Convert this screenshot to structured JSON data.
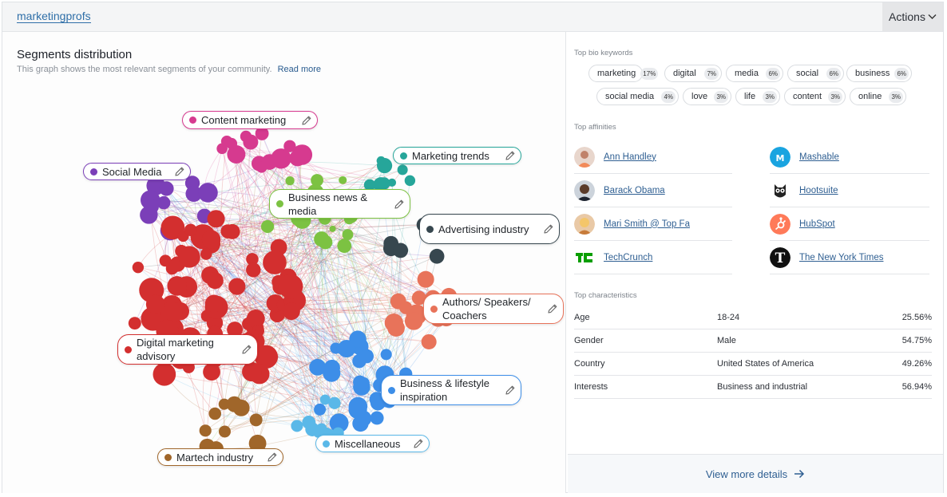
{
  "header": {
    "account": "marketingprofs",
    "actions_label": "Actions"
  },
  "graph": {
    "title": "Segments distribution",
    "subtitle": "This graph shows the most relevant segments of your community.",
    "read_more": "Read more",
    "segments": [
      {
        "name": "Content marketing",
        "color": "#d63a8f"
      },
      {
        "name": "Marketing trends",
        "color": "#26a69a"
      },
      {
        "name": "Social Media",
        "color": "#7b3fb8"
      },
      {
        "name": "Business news & media",
        "color": "#7cc242"
      },
      {
        "name": "Advertising industry",
        "color": "#37474f"
      },
      {
        "name": "Authors/ Speakers/ Coachers",
        "color": "#e8735a"
      },
      {
        "name": "Digital marketing advisory",
        "color": "#d32f2f"
      },
      {
        "name": "Business & lifestyle inspiration",
        "color": "#3d8ee8"
      },
      {
        "name": "Miscellaneous",
        "color": "#5ab8e8"
      },
      {
        "name": "Martech industry",
        "color": "#a0662a"
      }
    ]
  },
  "keywords": {
    "title": "Top bio keywords",
    "items": [
      {
        "word": "marketing",
        "pct": "17%"
      },
      {
        "word": "digital",
        "pct": "7%"
      },
      {
        "word": "media",
        "pct": "6%"
      },
      {
        "word": "social",
        "pct": "6%"
      },
      {
        "word": "business",
        "pct": "6%"
      },
      {
        "word": "social media",
        "pct": "4%"
      },
      {
        "word": "love",
        "pct": "3%"
      },
      {
        "word": "life",
        "pct": "3%"
      },
      {
        "word": "content",
        "pct": "3%"
      },
      {
        "word": "online",
        "pct": "3%"
      }
    ]
  },
  "affinities": {
    "title": "Top affinities",
    "items": [
      {
        "name": "Ann Handley",
        "icon": "person-avatar"
      },
      {
        "name": "Mashable",
        "icon": "mashable-logo"
      },
      {
        "name": "Barack Obama",
        "icon": "person-avatar"
      },
      {
        "name": "Hootsuite",
        "icon": "hootsuite-logo"
      },
      {
        "name": "Mari Smith @ Top Fa",
        "icon": "person-avatar"
      },
      {
        "name": "HubSpot",
        "icon": "hubspot-logo"
      },
      {
        "name": "TechCrunch",
        "icon": "techcrunch-logo"
      },
      {
        "name": "The New York Times",
        "icon": "nyt-logo"
      }
    ]
  },
  "characteristics": {
    "title": "Top characteristics",
    "rows": [
      {
        "label": "Age",
        "value": "18-24",
        "pct": "25.56%"
      },
      {
        "label": "Gender",
        "value": "Male",
        "pct": "54.75%"
      },
      {
        "label": "Country",
        "value": "United States of America",
        "pct": "49.26%"
      },
      {
        "label": "Interests",
        "value": "Business and industrial",
        "pct": "56.94%"
      }
    ]
  },
  "footer": {
    "view_more": "View more details"
  }
}
